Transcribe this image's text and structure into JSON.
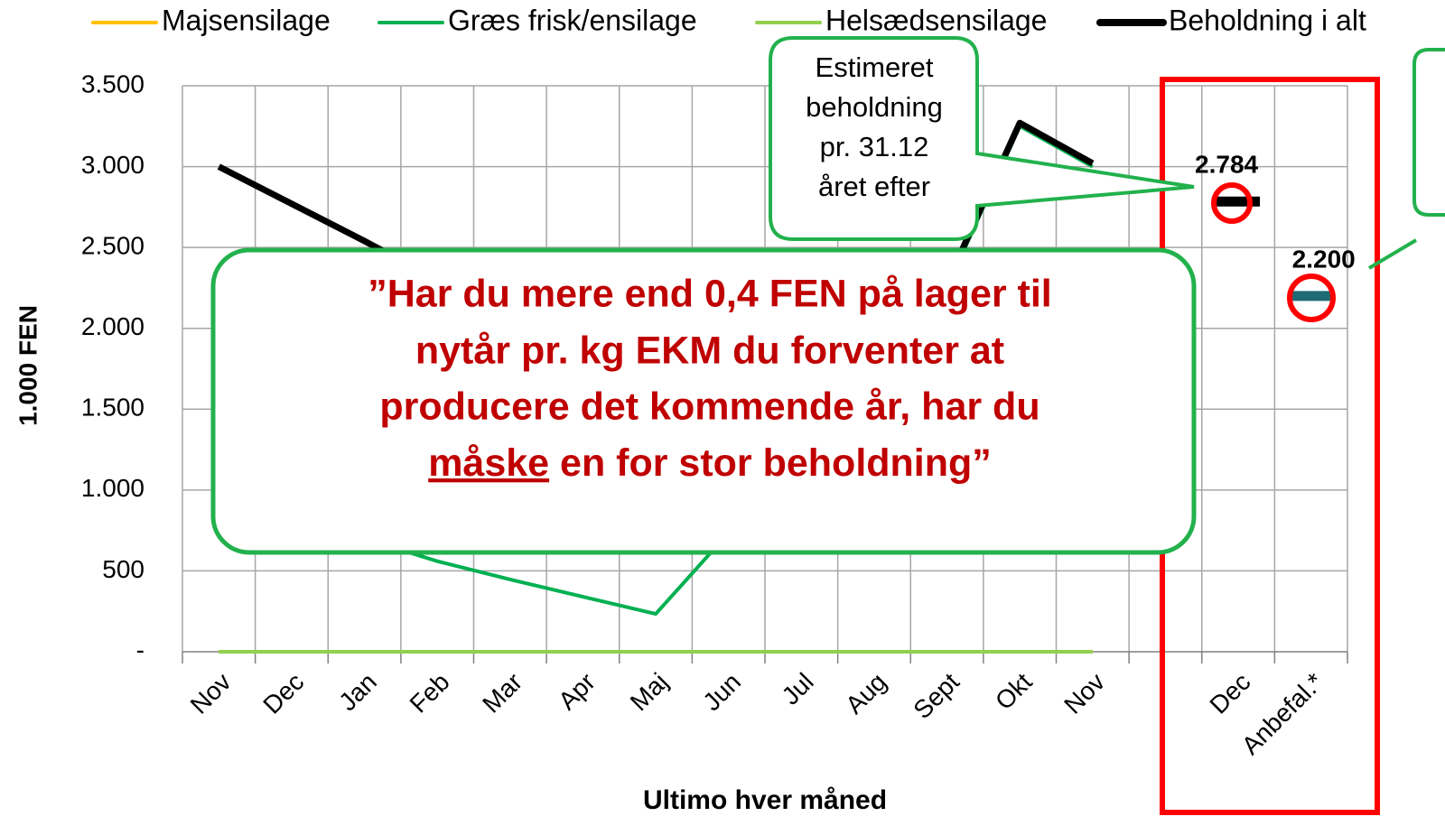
{
  "chart_data": {
    "type": "line",
    "y_axis_label": "1.000 FEN",
    "x_axis_label": "Ultimo hver måned",
    "categories": [
      "Nov",
      "Dec",
      "Jan",
      "Feb",
      "Mar",
      "Apr",
      "Maj",
      "Jun",
      "Jul",
      "Aug",
      "Sept",
      "Okt",
      "Nov",
      null,
      "Dec",
      "Anbefal.*"
    ],
    "ylim": [
      0,
      3500
    ],
    "yticks": [
      {
        "value": 0,
        "label": "-"
      },
      500,
      {
        "value": 1000,
        "label": "1.000"
      },
      {
        "value": 1500,
        "label": "1.500"
      },
      {
        "value": 2000,
        "label": "2.000"
      },
      {
        "value": 2500,
        "label": "2.500"
      },
      {
        "value": 3000,
        "label": "3.000"
      },
      {
        "value": 3500,
        "label": "3.500"
      }
    ],
    "grid": true,
    "legend": "top",
    "series": [
      {
        "name": "Majsensilage",
        "color": "#ffc000",
        "values": [
          0,
          0,
          0,
          0,
          0,
          0,
          0,
          0,
          0,
          0,
          0,
          0,
          0,
          null,
          null,
          null
        ]
      },
      {
        "name": "Græs frisk/ensilage",
        "color": "#00b050",
        "values": [
          1100,
          900,
          700,
          560,
          447,
          340,
          234,
          735,
          1300,
          1800,
          2250,
          3250,
          3000,
          null,
          null,
          null
        ]
      },
      {
        "name": "Helsædsensilage",
        "color": "#92d050",
        "values": [
          0,
          0,
          0,
          0,
          0,
          0,
          0,
          0,
          0,
          0,
          0,
          0,
          0,
          null,
          null,
          null
        ]
      },
      {
        "name": "Beholdning i alt",
        "color": "#000000",
        "values": [
          3000,
          2770,
          2540,
          2300,
          1700,
          1200,
          800,
          1000,
          1500,
          2000,
          2280,
          3270,
          3020,
          null,
          2784,
          null
        ],
        "value_labels": [
          null,
          null,
          null,
          null,
          null,
          null,
          null,
          null,
          null,
          null,
          null,
          null,
          null,
          null,
          "2.784",
          null
        ]
      },
      {
        "color": "#1f6b75",
        "values": [
          null,
          null,
          null,
          null,
          null,
          null,
          null,
          null,
          null,
          null,
          null,
          null,
          null,
          null,
          null,
          2200
        ],
        "value_labels": [
          null,
          null,
          null,
          null,
          null,
          null,
          null,
          null,
          null,
          null,
          null,
          null,
          null,
          null,
          null,
          "2.200"
        ]
      }
    ],
    "callout": {
      "lines": [
        "Estimeret",
        "beholdning",
        "pr. 31.12",
        "året efter"
      ]
    },
    "note": {
      "lines": [
        "”Har du mere end 0,4 FEN på lager til",
        "nytår pr. kg EKM du forventer at",
        "producere det kommende år, har du"
      ],
      "underlined": "måske",
      "rest": " en for stor beholdning”"
    }
  }
}
